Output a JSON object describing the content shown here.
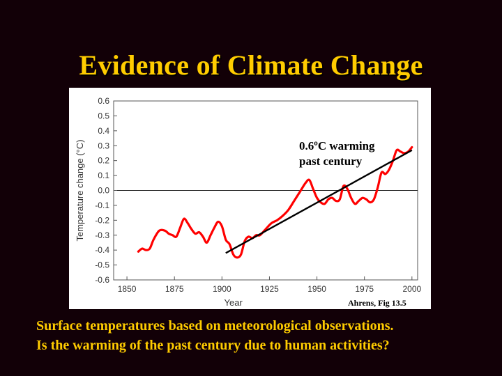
{
  "slide": {
    "title": "Evidence of Climate Change",
    "caption_lines": [
      "Surface temperatures based on meteorological observations.",
      "Is the warming of the past century due to human activities?"
    ]
  },
  "colors": {
    "background": "#120007",
    "title": "#FFCC00",
    "series": "#FF0000",
    "trend": "#000000"
  },
  "chart_data": {
    "type": "line",
    "title": "",
    "xlabel": "Year",
    "ylabel": "Temperature change (°C)",
    "xlim": [
      1843,
      2003
    ],
    "ylim": [
      -0.6,
      0.6
    ],
    "xticks": [
      1850,
      1875,
      1900,
      1925,
      1950,
      1975,
      2000
    ],
    "xtick_labels": [
      "1850",
      "1875",
      "1900",
      "1925",
      "1950",
      "1975",
      "2000"
    ],
    "yticks": [
      0.6,
      0.5,
      0.4,
      0.3,
      0.2,
      0.1,
      0.0,
      -0.1,
      -0.2,
      -0.3,
      -0.4,
      -0.5,
      -0.6
    ],
    "ytick_labels": [
      "0.6",
      "0.5",
      "0.4",
      "0.3",
      "0.2",
      "0.1",
      "0.0",
      "-0.1",
      "-0.2",
      "-0.3",
      "-0.4",
      "-0.5",
      "-0.6"
    ],
    "grid": false,
    "series": [
      {
        "x": [
          1856,
          1858,
          1860,
          1862,
          1864,
          1867,
          1870,
          1872,
          1874,
          1876,
          1878,
          1880,
          1882,
          1884,
          1886,
          1888,
          1890,
          1892,
          1894,
          1896,
          1898,
          1900,
          1902,
          1904,
          1906,
          1908,
          1910,
          1912,
          1914,
          1916,
          1918,
          1920,
          1923,
          1926,
          1929,
          1932,
          1935,
          1938,
          1941,
          1944,
          1946,
          1948,
          1950,
          1952,
          1954,
          1956,
          1958,
          1960,
          1962,
          1964,
          1966,
          1968,
          1970,
          1972,
          1974,
          1976,
          1978,
          1980,
          1982,
          1984,
          1986,
          1988,
          1990,
          1992,
          1994,
          1996,
          1998,
          2000
        ],
        "values": [
          -0.41,
          -0.39,
          -0.4,
          -0.39,
          -0.33,
          -0.27,
          -0.27,
          -0.29,
          -0.3,
          -0.31,
          -0.25,
          -0.19,
          -0.22,
          -0.26,
          -0.29,
          -0.28,
          -0.31,
          -0.35,
          -0.3,
          -0.25,
          -0.21,
          -0.24,
          -0.33,
          -0.36,
          -0.43,
          -0.45,
          -0.43,
          -0.34,
          -0.31,
          -0.32,
          -0.3,
          -0.3,
          -0.26,
          -0.22,
          -0.2,
          -0.17,
          -0.13,
          -0.07,
          -0.01,
          0.05,
          0.07,
          0.01,
          -0.05,
          -0.08,
          -0.09,
          -0.06,
          -0.05,
          -0.07,
          -0.06,
          0.03,
          0.01,
          -0.05,
          -0.09,
          -0.07,
          -0.05,
          -0.06,
          -0.08,
          -0.06,
          0.02,
          0.12,
          0.11,
          0.14,
          0.2,
          0.27,
          0.26,
          0.25,
          0.26,
          0.29
        ]
      }
    ],
    "trend_line": {
      "x": [
        1902,
        2000
      ],
      "values": [
        -0.42,
        0.27
      ]
    },
    "annotation": {
      "line1": "0.6ºC warming",
      "line2": "past century"
    },
    "source": "Ahrens, Fig 13.5"
  }
}
